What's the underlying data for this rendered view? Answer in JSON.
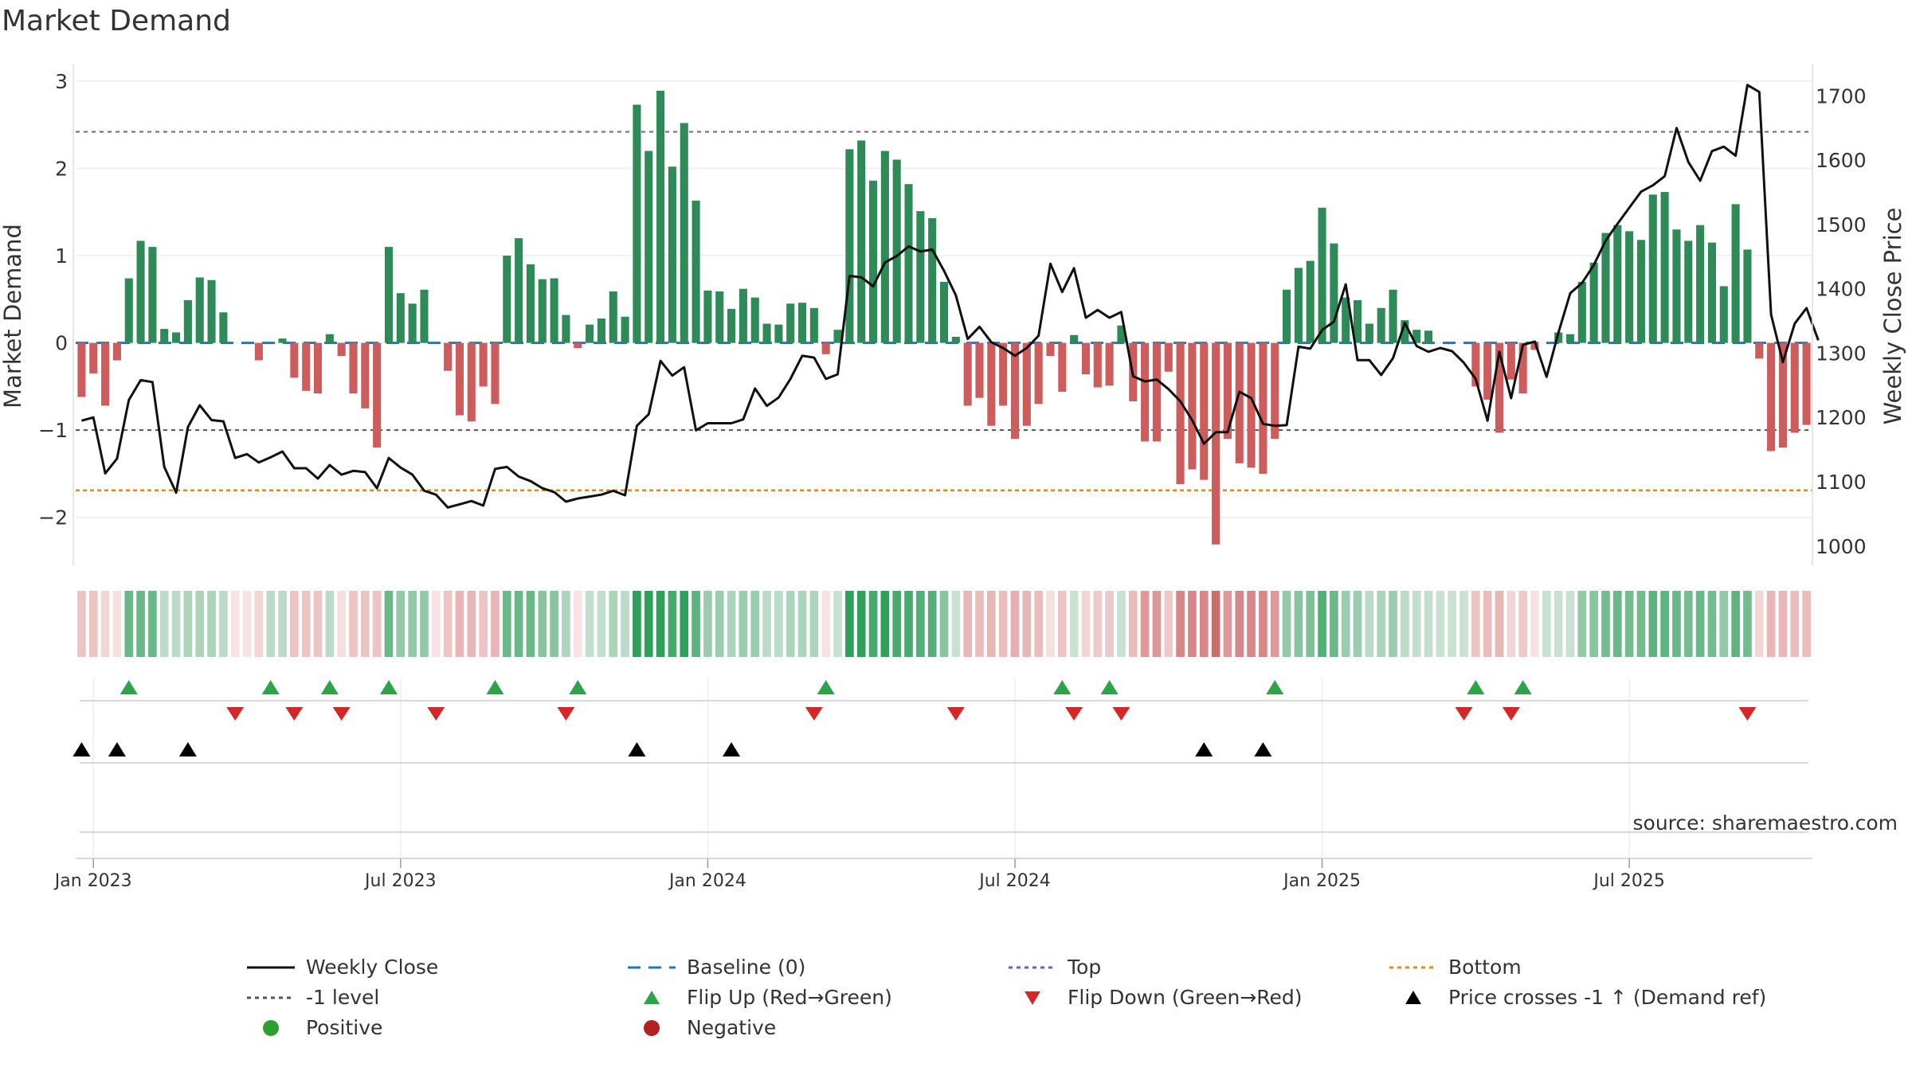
{
  "title": "Market Demand",
  "source": "source: sharemaestro.com",
  "colors": {
    "positive": "#2e8b57",
    "negative": "#cd5c5c",
    "close": "#111111",
    "baseline": "#1f77b4",
    "top": "#6a5acd",
    "minus_one": "#555555",
    "bottom": "#e08a1e",
    "flip_up": "#2ca54a",
    "flip_down": "#d62728",
    "cross": "#000000"
  },
  "chart_data": {
    "type": "bar",
    "title": "Market Demand",
    "ylabel_left": "Market Demand",
    "ylabel_right": "Weekly Close Price",
    "ylim_left": [
      -2.55,
      3.2
    ],
    "ylim_right": [
      970,
      1750
    ],
    "left_ticks": [
      3,
      2,
      1,
      0,
      -1,
      -2
    ],
    "left_tick_labels": [
      "3",
      "2",
      "1",
      "0",
      "−1",
      "−2"
    ],
    "right_ticks": [
      1700,
      1600,
      1500,
      1400,
      1300,
      1200,
      1100,
      1000
    ],
    "right_tick_labels": [
      "1700",
      "1600",
      "1500",
      "1400",
      "1300",
      "1200",
      "1100",
      "1000"
    ],
    "x_ticks": [
      1,
      27,
      53,
      79,
      105,
      131
    ],
    "x_tick_labels": [
      "Jan 2023",
      "Jul 2023",
      "Jan 2024",
      "Jul 2024",
      "Jan 2025",
      "Jul 2025"
    ],
    "reference_lines": {
      "top": 2.42,
      "minus_one": -1.0,
      "bottom": -1.69
    },
    "demand": [
      -0.62,
      -0.35,
      -0.72,
      -0.2,
      0.74,
      1.17,
      1.1,
      0.16,
      0.12,
      0.49,
      0.75,
      0.72,
      0.35,
      0,
      0,
      -0.2,
      0,
      0.05,
      -0.4,
      -0.55,
      -0.58,
      0.1,
      -0.15,
      -0.58,
      -0.75,
      -1.2,
      1.1,
      0.57,
      0.45,
      0.61,
      0,
      -0.32,
      -0.83,
      -0.9,
      -0.5,
      -0.7,
      1.0,
      1.2,
      0.9,
      0.73,
      0.74,
      0.32,
      -0.06,
      0.21,
      0.28,
      0.59,
      0.3,
      2.73,
      2.2,
      2.89,
      2.02,
      2.52,
      1.63,
      0.6,
      0.59,
      0.39,
      0.62,
      0.52,
      0.22,
      0.21,
      0.45,
      0.46,
      0.4,
      -0.13,
      0.15,
      2.22,
      2.32,
      1.86,
      2.2,
      2.1,
      1.82,
      1.51,
      1.43,
      0.7,
      0.07,
      -0.72,
      -0.63,
      -0.95,
      -0.72,
      -1.1,
      -0.95,
      -0.7,
      -0.15,
      -0.56,
      0.09,
      -0.36,
      -0.51,
      -0.49,
      0.2,
      -0.67,
      -1.13,
      -1.13,
      -0.33,
      -1.62,
      -1.45,
      -1.57,
      -2.31,
      -1.1,
      -1.38,
      -1.43,
      -1.5,
      -1.1,
      0.61,
      0.86,
      0.94,
      1.55,
      1.14,
      0.52,
      0.49,
      0.22,
      0.4,
      0.61,
      0.26,
      0.15,
      0.14,
      0,
      0,
      0,
      -0.5,
      -0.65,
      -1.03,
      -0.42,
      -0.58,
      -0.08,
      0,
      0.12,
      0.1,
      0.7,
      0.92,
      1.26,
      1.35,
      1.28,
      1.18,
      1.7,
      1.73,
      1.3,
      1.17,
      1.35,
      1.15,
      0.65,
      1.59,
      1.07,
      -0.18,
      -1.24,
      -1.2,
      -1.03,
      -0.94
    ],
    "weekly_close": [
      1195,
      1200,
      1113,
      1136,
      1227,
      1258,
      1255,
      1123,
      1083,
      1185,
      1219,
      1196,
      1194,
      1137,
      1143,
      1130,
      1138,
      1147,
      1121,
      1121,
      1105,
      1126,
      1111,
      1117,
      1115,
      1090,
      1137,
      1122,
      1111,
      1086,
      1080,
      1060,
      1065,
      1070,
      1063,
      1120,
      1123,
      1108,
      1101,
      1090,
      1084,
      1069,
      1074,
      1077,
      1080,
      1086,
      1079,
      1187,
      1205,
      1288,
      1265,
      1278,
      1180,
      1191,
      1191,
      1191,
      1197,
      1245,
      1218,
      1231,
      1260,
      1296,
      1293,
      1260,
      1267,
      1420,
      1418,
      1404,
      1441,
      1451,
      1466,
      1458,
      1461,
      1428,
      1390,
      1322,
      1341,
      1317,
      1308,
      1296,
      1308,
      1327,
      1439,
      1395,
      1432,
      1355,
      1367,
      1355,
      1364,
      1264,
      1256,
      1259,
      1244,
      1225,
      1196,
      1159,
      1177,
      1177,
      1240,
      1230,
      1190,
      1187,
      1188,
      1310,
      1307,
      1336,
      1349,
      1407,
      1289,
      1289,
      1266,
      1292,
      1347,
      1311,
      1302,
      1308,
      1303,
      1285,
      1260,
      1195,
      1302,
      1230,
      1313,
      1318,
      1263,
      1332,
      1393,
      1409,
      1437,
      1475,
      1501,
      1526,
      1551,
      1561,
      1575,
      1650,
      1597,
      1568,
      1614,
      1621,
      1607,
      1717,
      1706,
      1360,
      1286,
      1346,
      1370,
      1320
    ],
    "category_strip": [
      -0.45,
      -0.45,
      -0.3,
      -0.2,
      0.75,
      0.75,
      0.75,
      0.3,
      0.3,
      0.4,
      0.4,
      0.4,
      0.3,
      -0.15,
      -0.15,
      -0.3,
      0.3,
      0.3,
      -0.45,
      -0.45,
      -0.45,
      0.3,
      -0.2,
      -0.45,
      -0.45,
      -0.45,
      0.75,
      0.55,
      0.55,
      0.55,
      -0.15,
      -0.45,
      -0.55,
      -0.55,
      -0.45,
      -0.55,
      0.75,
      0.75,
      0.75,
      0.6,
      0.6,
      0.4,
      -0.15,
      0.25,
      0.25,
      0.4,
      0.3,
      1.0,
      1.0,
      1.0,
      0.9,
      1.0,
      0.8,
      0.5,
      0.5,
      0.4,
      0.5,
      0.5,
      0.3,
      0.3,
      0.4,
      0.4,
      0.4,
      -0.15,
      0.2,
      1.0,
      1.0,
      0.9,
      1.0,
      0.9,
      0.9,
      0.85,
      0.85,
      0.6,
      0.2,
      -0.55,
      -0.5,
      -0.55,
      -0.5,
      -0.6,
      -0.55,
      -0.5,
      -0.2,
      -0.45,
      0.2,
      -0.3,
      -0.4,
      -0.4,
      0.2,
      -0.5,
      -0.75,
      -0.75,
      -0.4,
      -0.85,
      -0.85,
      -0.85,
      -1.0,
      -0.75,
      -0.85,
      -0.85,
      -0.85,
      -0.75,
      0.55,
      0.6,
      0.65,
      0.85,
      0.75,
      0.5,
      0.5,
      0.3,
      0.4,
      0.5,
      0.3,
      0.25,
      0.25,
      0.2,
      0.2,
      0.2,
      -0.45,
      -0.5,
      -0.55,
      -0.3,
      -0.4,
      -0.15,
      0.2,
      0.2,
      0.2,
      0.55,
      0.6,
      0.7,
      0.75,
      0.7,
      0.7,
      0.8,
      0.8,
      0.75,
      0.7,
      0.75,
      0.7,
      0.55,
      0.8,
      0.7,
      -0.3,
      -0.55,
      -0.55,
      -0.5,
      -0.5
    ],
    "flip_up_weeks": [
      4,
      16,
      21,
      26,
      35,
      42,
      63,
      83,
      87,
      101,
      118,
      122
    ],
    "flip_down_weeks": [
      13,
      18,
      22,
      30,
      41,
      62,
      74,
      84,
      88,
      117,
      121,
      141
    ],
    "price_cross_weeks": [
      0,
      3,
      9,
      47,
      55,
      95,
      100
    ]
  },
  "legend": [
    {
      "key": "weekly_close",
      "label": "Weekly Close"
    },
    {
      "key": "baseline",
      "label": "Baseline (0)"
    },
    {
      "key": "top",
      "label": "Top"
    },
    {
      "key": "bottom",
      "label": "Bottom"
    },
    {
      "key": "minus_one",
      "label": "-1 level"
    },
    {
      "key": "flip_up",
      "label": "Flip Up (Red→Green)"
    },
    {
      "key": "flip_down",
      "label": "Flip Down (Green→Red)"
    },
    {
      "key": "price_cross",
      "label": "Price crosses -1 ↑ (Demand ref)"
    },
    {
      "key": "positive",
      "label": "Positive"
    },
    {
      "key": "negative",
      "label": "Negative"
    }
  ]
}
